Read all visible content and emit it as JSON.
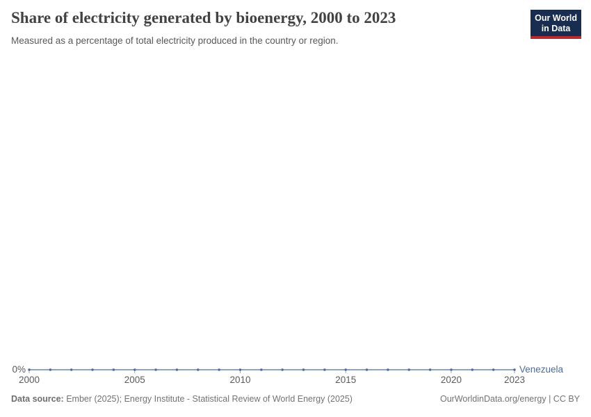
{
  "header": {
    "title": "Share of electricity generated by bioenergy, 2000 to 2023",
    "subtitle": "Measured as a percentage of total electricity produced in the country or region.",
    "logo": {
      "line1": "Our World",
      "line2": "in Data",
      "bg_color": "#182D50",
      "accent_color": "#BC2A30"
    }
  },
  "chart_data": {
    "type": "line",
    "title": "Share of electricity generated by bioenergy, 2000 to 2023",
    "xlabel": "",
    "ylabel": "",
    "unit": "%",
    "grid": false,
    "x": [
      2000,
      2001,
      2002,
      2003,
      2004,
      2005,
      2006,
      2007,
      2008,
      2009,
      2010,
      2011,
      2012,
      2013,
      2014,
      2015,
      2016,
      2017,
      2018,
      2019,
      2020,
      2021,
      2022,
      2023
    ],
    "series": [
      {
        "name": "Venezuela",
        "color": "#4C6A9C",
        "values": [
          0,
          0,
          0,
          0,
          0,
          0,
          0,
          0,
          0,
          0,
          0,
          0,
          0,
          0,
          0,
          0,
          0,
          0,
          0,
          0,
          0,
          0,
          0,
          0
        ]
      }
    ],
    "x_ticks": [
      2000,
      2005,
      2010,
      2015,
      2020,
      2023
    ],
    "x_tick_labels": [
      "2000",
      "2005",
      "2010",
      "2015",
      "2020",
      "2023"
    ],
    "y_ticks": [
      "0%"
    ],
    "legend_position": "end-of-line"
  },
  "footer": {
    "source_label": "Data source:",
    "source_text": " Ember (2025); Energy Institute - Statistical Review of World Energy (2025)",
    "attribution": "OurWorldinData.org/energy | CC BY"
  },
  "colors": {
    "series_blue": "#4C6A9C",
    "tick_gray": "#A5A5A5",
    "axis_label_gray": "#5B5B5B",
    "footer_gray": "#737373"
  }
}
